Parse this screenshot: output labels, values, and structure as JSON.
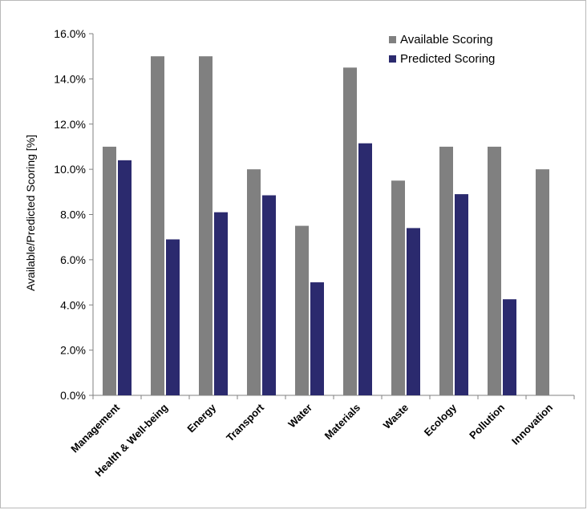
{
  "chart_data": {
    "type": "bar",
    "title": "",
    "xlabel": "",
    "ylabel": "Available/Predicted  Scoring [%]",
    "ylim": [
      0,
      16
    ],
    "yticks": [
      "0.0%",
      "2.0%",
      "4.0%",
      "6.0%",
      "8.0%",
      "10.0%",
      "12.0%",
      "14.0%",
      "16.0%"
    ],
    "ytick_values": [
      0,
      2,
      4,
      6,
      8,
      10,
      12,
      14,
      16
    ],
    "categories": [
      "Management",
      "Health & Well-being",
      "Energy",
      "Transport",
      "Water",
      "Materials",
      "Waste",
      "Ecology",
      "Pollution",
      "Innovation"
    ],
    "series": [
      {
        "name": "Available Scoring",
        "color": "#808080",
        "values": [
          11.0,
          15.0,
          15.0,
          10.0,
          7.5,
          14.5,
          9.5,
          11.0,
          11.0,
          10.0
        ]
      },
      {
        "name": "Predicted Scoring",
        "color": "#2b2a6e",
        "values": [
          10.4,
          6.9,
          8.1,
          8.85,
          5.0,
          11.15,
          7.4,
          8.9,
          4.25,
          0
        ]
      }
    ],
    "legend_position": "top-right",
    "grid": false
  }
}
